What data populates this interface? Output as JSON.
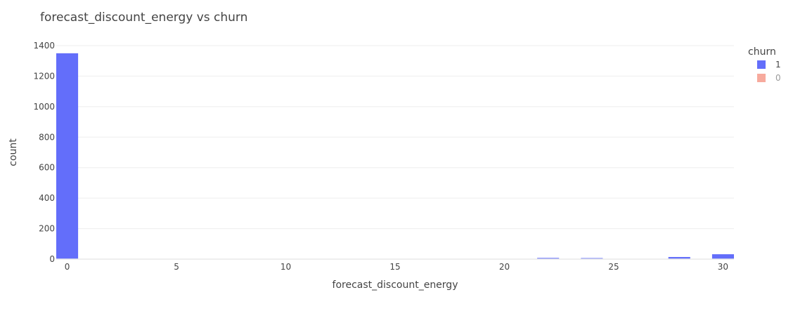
{
  "chart_data": {
    "type": "bar",
    "title": "forecast_discount_energy vs churn",
    "xlabel": "forecast_discount_energy",
    "ylabel": "count",
    "xlim": [
      -0.5,
      30.5
    ],
    "ylim": [
      0,
      1400
    ],
    "x_ticks": [
      0,
      5,
      10,
      15,
      20,
      25,
      30
    ],
    "y_ticks": [
      0,
      200,
      400,
      600,
      800,
      1000,
      1200,
      1400
    ],
    "bin_width": 1,
    "grid": true,
    "legend": {
      "title": "churn",
      "placement": "top-right",
      "entries": [
        {
          "label": "1",
          "color": "#636efa",
          "visible": true
        },
        {
          "label": "0",
          "color": "#ef553b",
          "visible": false
        }
      ]
    },
    "series": [
      {
        "name": "1",
        "color": "#636efa",
        "x": [
          0,
          22,
          24,
          28,
          30
        ],
        "values": [
          1350,
          8,
          7,
          14,
          32
        ]
      }
    ]
  }
}
